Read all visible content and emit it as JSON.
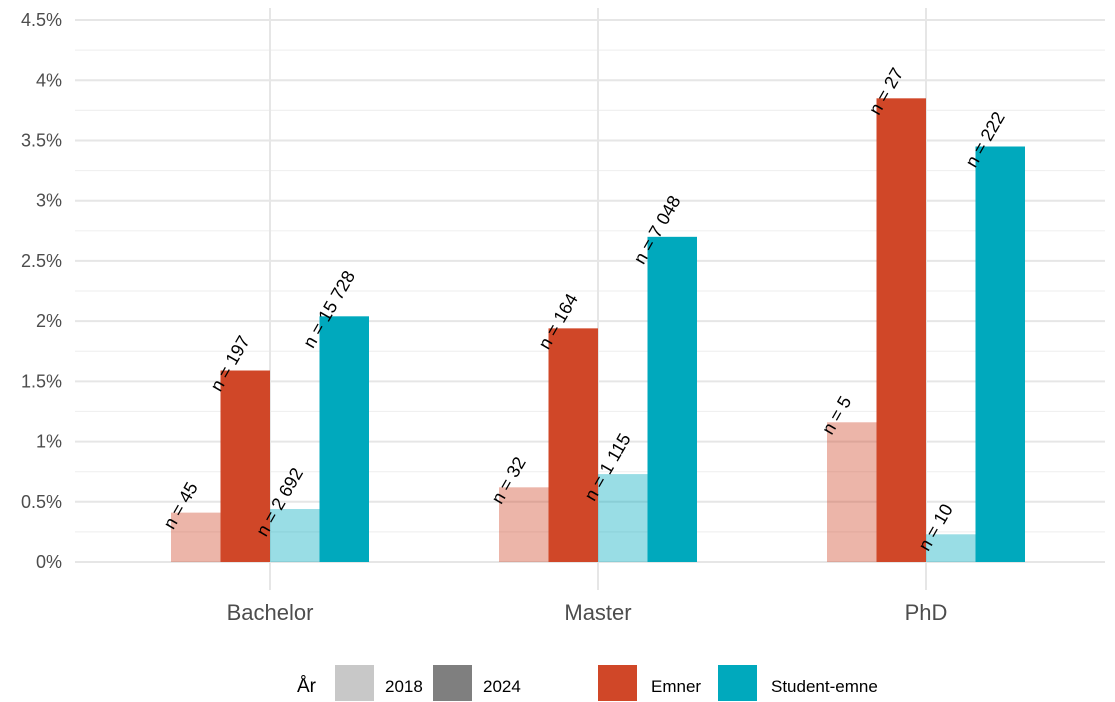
{
  "chart_data": {
    "type": "bar",
    "title": "",
    "xlabel": "",
    "ylabel": "",
    "categories": [
      "Bachelor",
      "Master",
      "PhD"
    ],
    "y_ticks": [
      "0%",
      "0.5%",
      "1%",
      "1.5%",
      "2%",
      "2.5%",
      "3%",
      "3.5%",
      "4%",
      "4.5%"
    ],
    "ylim": [
      0,
      4.6
    ],
    "grid": true,
    "legend_position": "bottom",
    "series": [
      {
        "name": "Emner",
        "year": "2018",
        "color": "#D04728",
        "opacity": 0.4,
        "values": [
          0.41,
          0.62,
          1.16
        ],
        "labels": [
          "n =  45",
          "n =  32",
          "n =   5"
        ]
      },
      {
        "name": "Emner",
        "year": "2024",
        "color": "#D04728",
        "opacity": 1,
        "values": [
          1.59,
          1.94,
          3.85
        ],
        "labels": [
          "n = 197",
          "n = 164",
          "n =  27"
        ]
      },
      {
        "name": "Student-emne",
        "year": "2018",
        "color": "#00A9BD",
        "opacity": 0.4,
        "values": [
          0.44,
          0.73,
          0.23
        ],
        "labels": [
          "n = 2 692",
          "n = 1 115",
          "n =   10"
        ]
      },
      {
        "name": "Student-emne",
        "year": "2024",
        "color": "#00A9BD",
        "opacity": 1,
        "values": [
          2.04,
          2.7,
          3.45
        ],
        "labels": [
          "n = 15 728",
          "n = 7 048",
          "n =  222"
        ]
      }
    ],
    "legend": {
      "year_title": "År",
      "year_items": [
        {
          "label": "2018",
          "color": "#C8C8C8"
        },
        {
          "label": "2024",
          "color": "#7F7F7F"
        }
      ],
      "type_items": [
        {
          "label": "Emner",
          "color": "#D04728"
        },
        {
          "label": "Student-emne",
          "color": "#00A9BD"
        }
      ]
    }
  }
}
